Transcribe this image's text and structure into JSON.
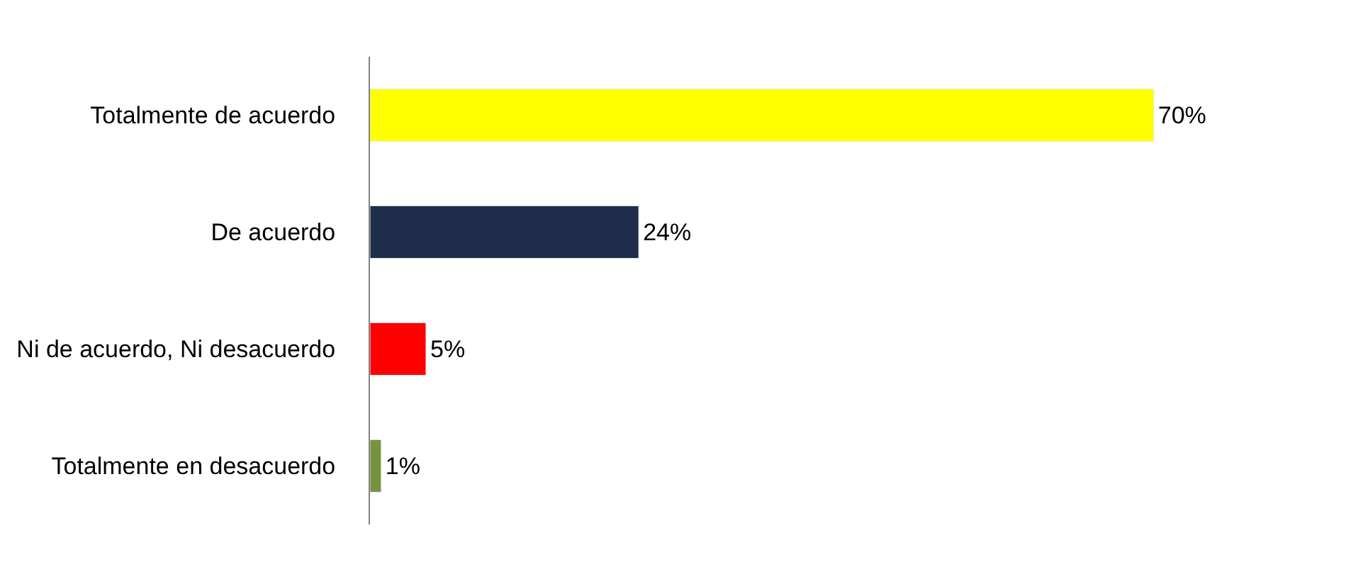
{
  "chart_data": {
    "type": "bar",
    "orientation": "horizontal",
    "categories": [
      "Totalmente de acuerdo",
      "De acuerdo",
      "Ni de acuerdo, Ni desacuerdo",
      "Totalmente en desacuerdo"
    ],
    "values": [
      70,
      24,
      5,
      1
    ],
    "colors": [
      "#ffff00",
      "#1f2d4a",
      "#ff0000",
      "#77933c"
    ],
    "value_labels": [
      "70%",
      "24%",
      "5%",
      "1%"
    ]
  }
}
